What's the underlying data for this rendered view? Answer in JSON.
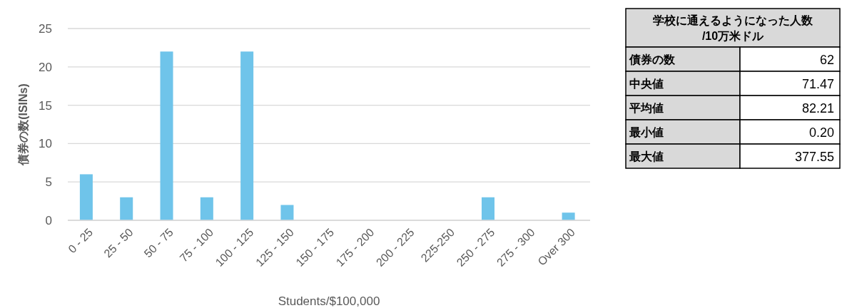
{
  "chart_data": [
    {
      "type": "bar",
      "xlabel": "Students/$100,000",
      "ylabel": "債券の数(ISINs)",
      "categories": [
        "0 - 25",
        "25 - 50",
        "50 - 75",
        "75 - 100",
        "100 - 125",
        "125 - 150",
        "150 - 175",
        "175 - 200",
        "200 - 225",
        "225-250",
        "250 - 275",
        "275 - 300",
        "Over 300"
      ],
      "values": [
        6,
        3,
        22,
        3,
        22,
        2,
        0,
        0,
        0,
        0,
        3,
        0,
        1
      ],
      "color": "#6fc4ea",
      "ylim": [
        0,
        25
      ],
      "yticks": [
        0,
        5,
        10,
        15,
        20,
        25
      ],
      "grid": "y"
    },
    {
      "type": "other",
      "title": "学校に通えるようになった人数\n/10万米ドル",
      "categories": [
        "債券の数",
        "中央値",
        "平均値",
        "最小値",
        "最大値"
      ],
      "values": [
        62,
        71.47,
        82.21,
        0.2,
        377.55
      ],
      "value_labels": [
        "62",
        "71.47",
        "82.21",
        "0.20",
        "377.55"
      ]
    }
  ]
}
